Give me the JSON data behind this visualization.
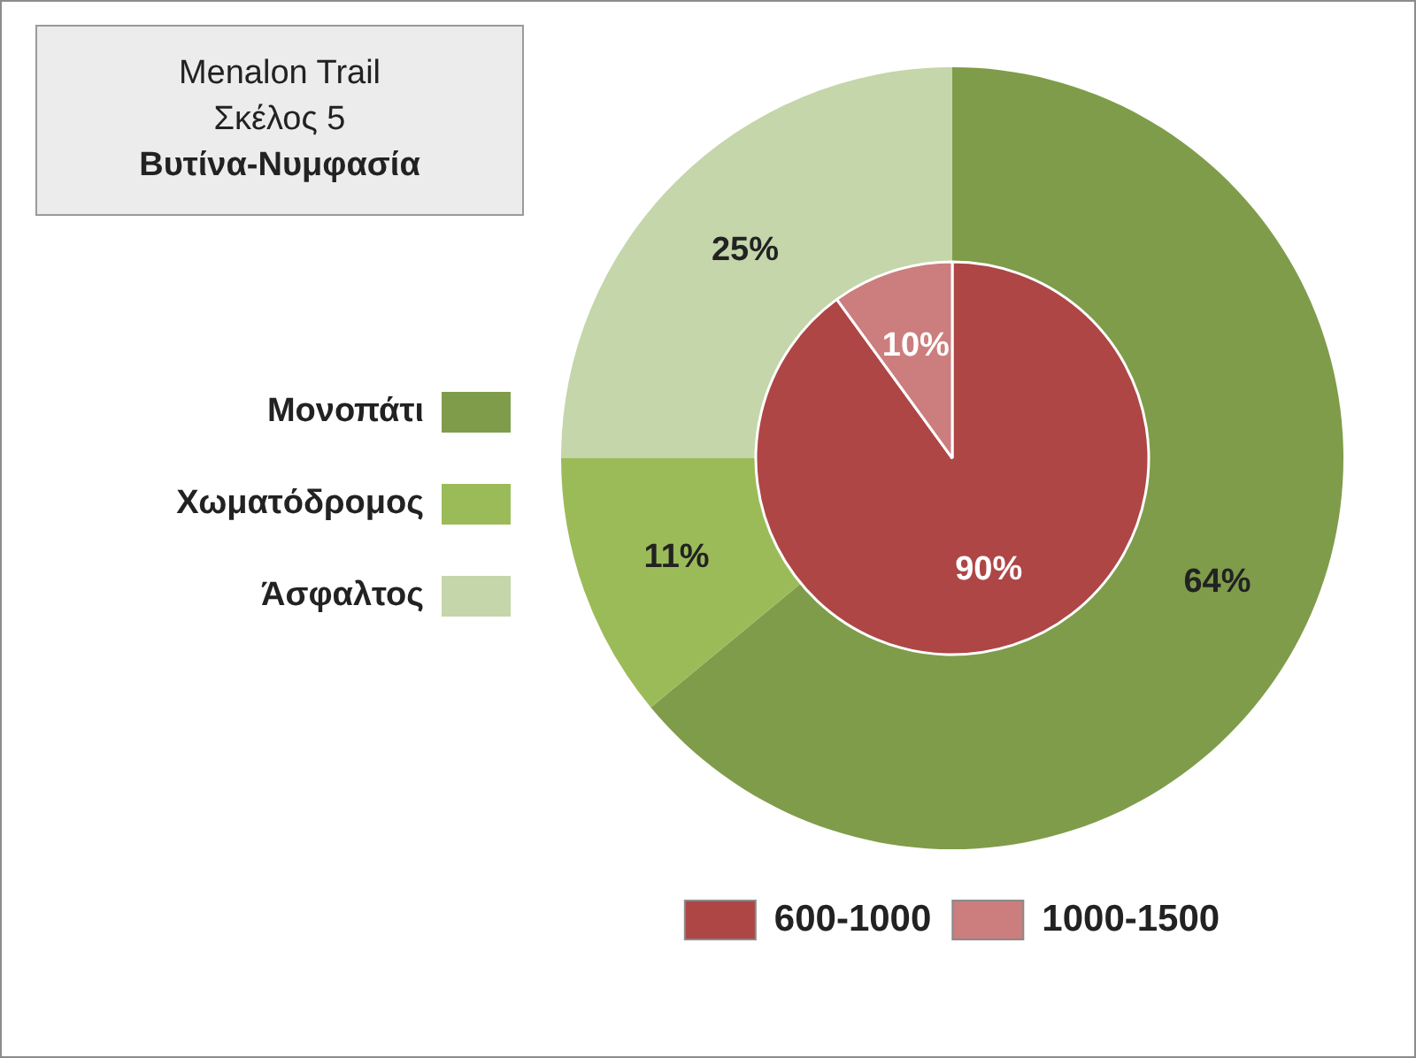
{
  "chart_data": [
    {
      "type": "donut",
      "title": "Menalon Trail",
      "subtitle": "Σκέλος 5",
      "annotations": [
        "Βυτίνα-Νυμφασία"
      ],
      "categories": [
        "Μονοπάτι",
        "Χωματόδρομος",
        "Άσφαλτος"
      ],
      "values": [
        64,
        11,
        25
      ],
      "colors": [
        "#7f9c4a",
        "#9bbb59",
        "#c4d6aa"
      ],
      "value_labels": [
        "64%",
        "11%",
        "25%"
      ],
      "legend": "left"
    },
    {
      "type": "pie",
      "categories": [
        "600-1000",
        "1000-1500"
      ],
      "values": [
        90,
        10
      ],
      "colors": [
        "#ae4646",
        "#cc7d7d"
      ],
      "value_labels": [
        "90%",
        "10%"
      ],
      "legend": "bottom"
    }
  ]
}
